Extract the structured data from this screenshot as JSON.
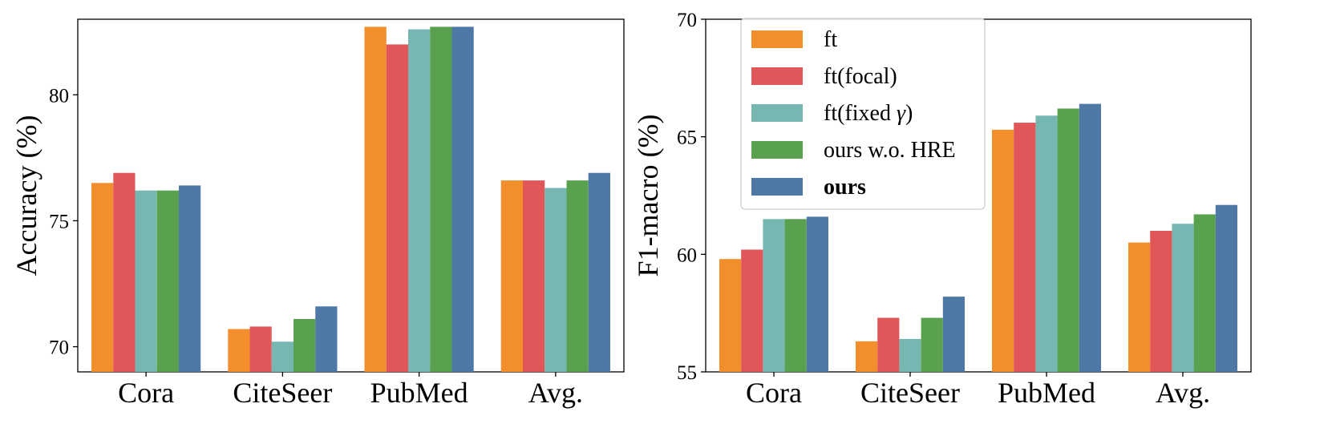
{
  "colors": {
    "ft": "#f28e2b",
    "ft_focal": "#e15759",
    "ft_fixed": "#76b7b2",
    "ours_wo_hre": "#59a14f",
    "ours": "#4e79a7"
  },
  "chart_data": [
    {
      "type": "bar",
      "title": "",
      "xlabel": "",
      "ylabel": "Accuracy (%)",
      "ylim": [
        69,
        83
      ],
      "yticks": [
        70,
        75,
        80
      ],
      "categories": [
        "Cora",
        "CiteSeer",
        "PubMed",
        "Avg."
      ],
      "series": [
        {
          "name": "ft",
          "values": [
            76.5,
            70.7,
            82.7,
            76.6
          ]
        },
        {
          "name": "ft(focal)",
          "values": [
            76.9,
            70.8,
            82.0,
            76.6
          ]
        },
        {
          "name": "ft(fixed γ)",
          "values": [
            76.2,
            70.2,
            82.6,
            76.3
          ]
        },
        {
          "name": "ours w.o. HRE",
          "values": [
            76.2,
            71.1,
            82.7,
            76.6
          ]
        },
        {
          "name": "ours",
          "values": [
            76.4,
            71.6,
            82.7,
            76.9
          ]
        }
      ]
    },
    {
      "type": "bar",
      "title": "",
      "xlabel": "",
      "ylabel": "F1-macro (%)",
      "ylim": [
        55,
        70
      ],
      "yticks": [
        55,
        60,
        65,
        70
      ],
      "categories": [
        "Cora",
        "CiteSeer",
        "PubMed",
        "Avg."
      ],
      "legend_position": "upper-left",
      "series": [
        {
          "name": "ft",
          "values": [
            59.8,
            56.3,
            65.3,
            60.5
          ]
        },
        {
          "name": "ft(focal)",
          "values": [
            60.2,
            57.3,
            65.6,
            61.0
          ]
        },
        {
          "name": "ft(fixed γ)",
          "values": [
            61.5,
            56.4,
            65.9,
            61.3
          ]
        },
        {
          "name": "ours w.o. HRE",
          "values": [
            61.5,
            57.3,
            66.2,
            61.7
          ]
        },
        {
          "name": "ours",
          "values": [
            61.6,
            58.2,
            66.4,
            62.1
          ]
        }
      ]
    }
  ],
  "legend": {
    "entries": [
      {
        "label_prefix": "ft",
        "label_symbol": "",
        "label_suffix": "",
        "bold": false
      },
      {
        "label_prefix": "ft(focal)",
        "label_symbol": "",
        "label_suffix": "",
        "bold": false
      },
      {
        "label_prefix": "ft(fixed ",
        "label_symbol": "γ",
        "label_suffix": ")",
        "bold": false
      },
      {
        "label_prefix": "ours w.o. HRE",
        "label_symbol": "",
        "label_suffix": "",
        "bold": false
      },
      {
        "label_prefix": "ours",
        "label_symbol": "",
        "label_suffix": "",
        "bold": true
      }
    ]
  }
}
